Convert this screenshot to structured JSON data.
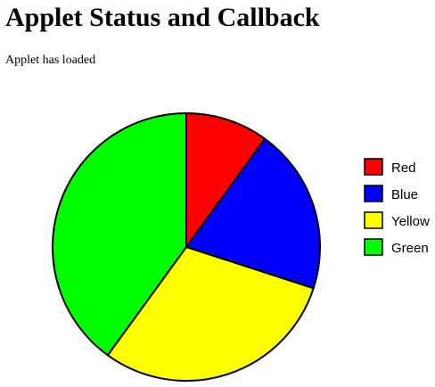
{
  "page": {
    "title": "Applet Status and Callback",
    "status": "Applet has loaded"
  },
  "chart_data": {
    "type": "pie",
    "title": "",
    "slices": [
      {
        "name": "Red",
        "value": 10,
        "color": "#ff0000"
      },
      {
        "name": "Blue",
        "value": 20,
        "color": "#0000ff"
      },
      {
        "name": "Yellow",
        "value": 30,
        "color": "#ffff00"
      },
      {
        "name": "Green",
        "value": 40,
        "color": "#00ff00"
      }
    ],
    "legend": "right",
    "start_angle": "top",
    "direction": "clockwise"
  }
}
